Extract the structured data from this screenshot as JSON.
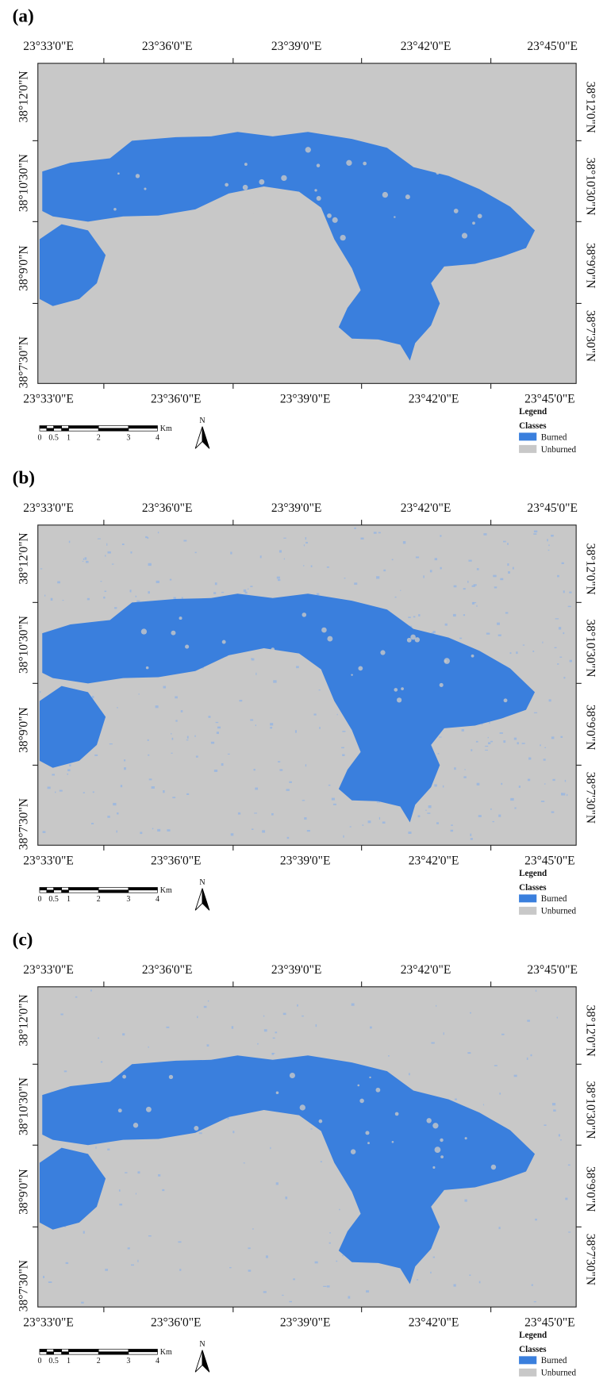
{
  "panels": [
    {
      "label": "(a)",
      "top_labels": [
        "23°33'0\"E",
        "23°36'0\"E",
        "23°39'0\"E",
        "23°42'0\"E",
        "23°45'0\"E"
      ],
      "bottom_labels": [
        "23°33'0\"E",
        "23°36'0\"E",
        "23°39'0\"E",
        "23°42'0\"E",
        "23°45'0\"E"
      ],
      "left_labels": [
        "38°12'0\"N",
        "38°10'30\"N",
        "38°9'0\"N",
        "38°7'30\"N"
      ],
      "right_labels": [
        "38°12'0\"N",
        "38°10'30\"N",
        "38°9'0\"N",
        "38°7'30\"N"
      ],
      "scale_labels": [
        "0",
        "0.5",
        "1",
        "2",
        "3",
        "4"
      ],
      "scale_unit": "Km",
      "north": "N",
      "legend": {
        "title": "Legend",
        "subtitle": "Classes",
        "items": [
          "Burned",
          "Unburned"
        ]
      }
    },
    {
      "label": "(b)",
      "top_labels": [
        "23°33'0\"E",
        "23°36'0\"E",
        "23°39'0\"E",
        "23°42'0\"E",
        "23°45'0\"E"
      ],
      "bottom_labels": [
        "23°33'0\"E",
        "23°36'0\"E",
        "23°39'0\"E",
        "23°42'0\"E",
        "23°45'0\"E"
      ],
      "left_labels": [
        "38°12'0\"N",
        "38°10'30\"N",
        "38°9'0\"N",
        "38°7'30\"N"
      ],
      "right_labels": [
        "38°12'0\"N",
        "38°10'30\"N",
        "38°9'0\"N",
        "38°7'30\"N"
      ],
      "scale_labels": [
        "0",
        "0.5",
        "1",
        "2",
        "3",
        "4"
      ],
      "scale_unit": "Km",
      "north": "N",
      "legend": {
        "title": "Legend",
        "subtitle": "Classes",
        "items": [
          "Burned",
          "Unburned"
        ]
      }
    },
    {
      "label": "(c)",
      "top_labels": [
        "23°33'0\"E",
        "23°36'0\"E",
        "23°39'0\"E",
        "23°42'0\"E",
        "23°45'0\"E"
      ],
      "bottom_labels": [
        "23°33'0\"E",
        "23°36'0\"E",
        "23°39'0\"E",
        "23°42'0\"E",
        "23°45'0\"E"
      ],
      "left_labels": [
        "38°12'0\"N",
        "38°10'30\"N",
        "38°9'0\"N",
        "38°7'30\"N"
      ],
      "right_labels": [
        "38°12'0\"N",
        "38°10'30\"N",
        "38°9'0\"N",
        "38°7'30\"N"
      ],
      "scale_labels": [
        "0",
        "0.5",
        "1",
        "2",
        "3",
        "4"
      ],
      "scale_unit": "Km",
      "north": "N",
      "legend": {
        "title": "Legend",
        "subtitle": "Classes",
        "items": [
          "Burned",
          "Unburned"
        ]
      }
    }
  ]
}
